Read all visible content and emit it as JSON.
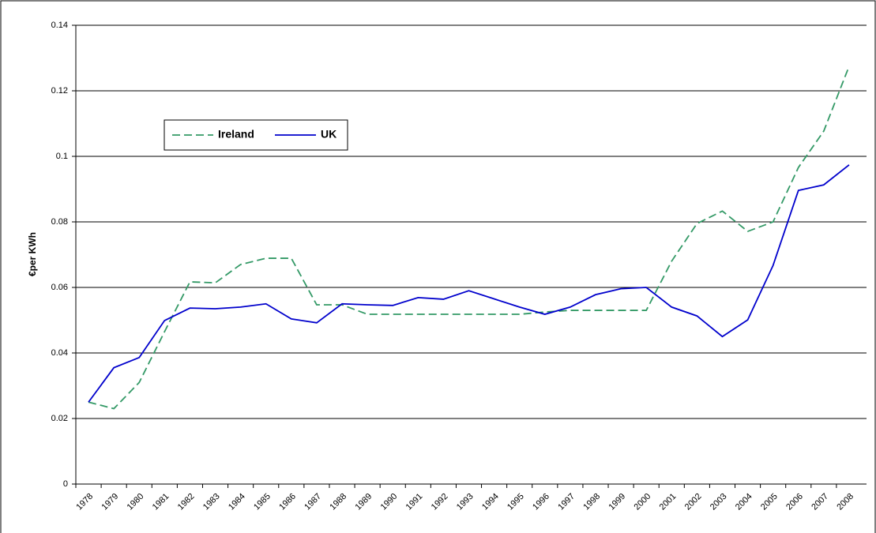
{
  "chart_data": {
    "type": "line",
    "y_label": "€per KWh",
    "categories": [
      "1978",
      "1979",
      "1980",
      "1981",
      "1982",
      "1983",
      "1984",
      "1985",
      "1986",
      "1987",
      "1988",
      "1989",
      "1990",
      "1991",
      "1992",
      "1993",
      "1994",
      "1995",
      "1996",
      "1997",
      "1998",
      "1999",
      "2000",
      "2001",
      "2002",
      "2003",
      "2004",
      "2005",
      "2006",
      "2007",
      "2008"
    ],
    "series": [
      {
        "name": "Ireland",
        "color": "#339966",
        "line_style": "dashed",
        "values": [
          0.025,
          0.023,
          0.031,
          0.0465,
          0.0617,
          0.0614,
          0.067,
          0.0689,
          0.0689,
          0.0547,
          0.0547,
          0.0518,
          0.0518,
          0.0518,
          0.0518,
          0.0518,
          0.0518,
          0.0518,
          0.0525,
          0.053,
          0.053,
          0.053,
          0.053,
          0.068,
          0.0795,
          0.0833,
          0.0771,
          0.08,
          0.0966,
          0.1077,
          0.1275
        ]
      },
      {
        "name": "UK",
        "color": "#0000cc",
        "line_style": "solid",
        "values": [
          0.025,
          0.0355,
          0.0386,
          0.0499,
          0.0537,
          0.0535,
          0.054,
          0.055,
          0.0504,
          0.0492,
          0.055,
          0.0547,
          0.0545,
          0.0569,
          0.0564,
          0.059,
          0.0565,
          0.054,
          0.0518,
          0.054,
          0.0578,
          0.0596,
          0.06,
          0.054,
          0.0513,
          0.045,
          0.0501,
          0.0667,
          0.0896,
          0.0913,
          0.0974
        ]
      }
    ],
    "ylim": [
      0,
      0.14
    ],
    "yticks": [
      0,
      0.02,
      0.04,
      0.06,
      0.08,
      0.1,
      0.12,
      0.14
    ],
    "grid": true
  }
}
